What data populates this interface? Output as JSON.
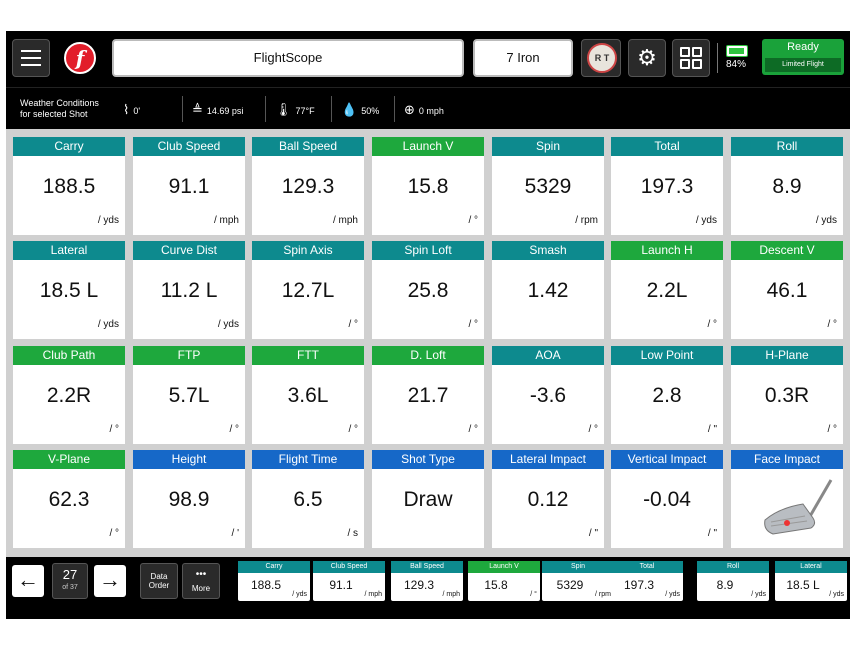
{
  "header": {
    "title": "FlightScope",
    "club": "7 Iron",
    "rt_label": "R T",
    "battery_percent": "84%",
    "battery_level": 0.84,
    "status_main": "Ready",
    "status_sub": "Limited Flight"
  },
  "weather": {
    "label_line1": "Weather Conditions",
    "label_line2": "for selected Shot",
    "altitude": "0'",
    "pressure": "14.69 psi",
    "temperature": "77°F",
    "humidity": "50%",
    "wind": "0 mph"
  },
  "metrics": [
    {
      "label": "Carry",
      "value": "188.5",
      "unit": "/ yds",
      "color": "teal"
    },
    {
      "label": "Club Speed",
      "value": "91.1",
      "unit": "/ mph",
      "color": "teal"
    },
    {
      "label": "Ball Speed",
      "value": "129.3",
      "unit": "/ mph",
      "color": "teal"
    },
    {
      "label": "Launch V",
      "value": "15.8",
      "unit": "/ °",
      "color": "green"
    },
    {
      "label": "Spin",
      "value": "5329",
      "unit": "/ rpm",
      "color": "teal"
    },
    {
      "label": "Total",
      "value": "197.3",
      "unit": "/ yds",
      "color": "teal"
    },
    {
      "label": "Roll",
      "value": "8.9",
      "unit": "/ yds",
      "color": "teal"
    },
    {
      "label": "Lateral",
      "value": "18.5 L",
      "unit": "/ yds",
      "color": "teal"
    },
    {
      "label": "Curve Dist",
      "value": "11.2 L",
      "unit": "/ yds",
      "color": "teal"
    },
    {
      "label": "Spin Axis",
      "value": "12.7L",
      "unit": "/ °",
      "color": "teal"
    },
    {
      "label": "Spin Loft",
      "value": "25.8",
      "unit": "/ °",
      "color": "teal"
    },
    {
      "label": "Smash",
      "value": "1.42",
      "unit": "",
      "color": "teal"
    },
    {
      "label": "Launch H",
      "value": "2.2L",
      "unit": "/ °",
      "color": "green"
    },
    {
      "label": "Descent V",
      "value": "46.1",
      "unit": "/ °",
      "color": "green"
    },
    {
      "label": "Club Path",
      "value": "2.2R",
      "unit": "/ °",
      "color": "green"
    },
    {
      "label": "FTP",
      "value": "5.7L",
      "unit": "/ °",
      "color": "green"
    },
    {
      "label": "FTT",
      "value": "3.6L",
      "unit": "/ °",
      "color": "green"
    },
    {
      "label": "D. Loft",
      "value": "21.7",
      "unit": "/ °",
      "color": "green"
    },
    {
      "label": "AOA",
      "value": "-3.6",
      "unit": "/ °",
      "color": "teal"
    },
    {
      "label": "Low Point",
      "value": "2.8",
      "unit": "/ \"",
      "color": "teal"
    },
    {
      "label": "H-Plane",
      "value": "0.3R",
      "unit": "/ °",
      "color": "teal"
    },
    {
      "label": "V-Plane",
      "value": "62.3",
      "unit": "/ °",
      "color": "green"
    },
    {
      "label": "Height",
      "value": "98.9",
      "unit": "/ '",
      "color": "blue"
    },
    {
      "label": "Flight Time",
      "value": "6.5",
      "unit": "/ s",
      "color": "blue"
    },
    {
      "label": "Shot Type",
      "value": "Draw",
      "unit": "",
      "color": "blue"
    },
    {
      "label": "Lateral Impact",
      "value": "0.12",
      "unit": "/ \"",
      "color": "blue"
    },
    {
      "label": "Vertical Impact",
      "value": "-0.04",
      "unit": "/ \"",
      "color": "blue"
    },
    {
      "label": "Face Impact",
      "value": "",
      "unit": "",
      "color": "blue"
    }
  ],
  "footer": {
    "page_current": "27",
    "page_of": "of 37",
    "data_order_line1": "Data",
    "data_order_line2": "Order",
    "more_dots": "•••",
    "more_label": "More",
    "mini": [
      {
        "label": "Carry",
        "value": "188.5",
        "unit": "/ yds",
        "color": "teal"
      },
      {
        "label": "Club Speed",
        "value": "91.1",
        "unit": "/ mph",
        "color": "teal"
      },
      {
        "label": "Ball Speed",
        "value": "129.3",
        "unit": "/ mph",
        "color": "teal"
      },
      {
        "label": "Launch V",
        "value": "15.8",
        "unit": "/ °",
        "color": "green"
      },
      {
        "label": "Spin",
        "value": "5329",
        "unit": "/ rpm",
        "color": "teal"
      },
      {
        "label": "Total",
        "value": "197.3",
        "unit": "/ yds",
        "color": "teal"
      },
      {
        "label": "Roll",
        "value": "8.9",
        "unit": "/ yds",
        "color": "teal"
      },
      {
        "label": "Lateral",
        "value": "18.5 L",
        "unit": "/ yds",
        "color": "teal"
      }
    ]
  },
  "colors": {
    "teal": "#0d8a8e",
    "green": "#1ea83d",
    "blue": "#1668c8",
    "ready": "#1aa23a"
  },
  "icons": [
    "menu-icon",
    "flightscope-logo-icon",
    "rt-icon",
    "gear-icon",
    "grid-icon",
    "battery-icon",
    "altitude-icon",
    "pressure-icon",
    "thermometer-icon",
    "humidity-icon",
    "wind-icon",
    "arrow-left-icon",
    "arrow-right-icon",
    "iron-club-icon"
  ]
}
